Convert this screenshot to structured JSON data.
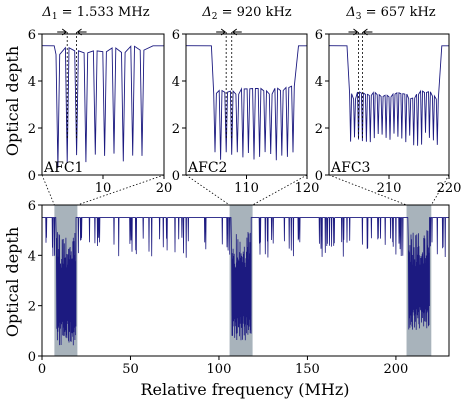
{
  "chart_data": [
    {
      "type": "line",
      "panel": "AFC1",
      "title": "Δ1 = 1.533 MHz",
      "title_parts": {
        "symbol": "Δ",
        "subscript": "1",
        "value": " = 1.533 MHz"
      },
      "label": "AFC1",
      "ylabel": "Optical depth",
      "xlim": [
        0,
        20
      ],
      "ylim": [
        0,
        6
      ],
      "x_ticks": [
        "10",
        "20"
      ],
      "y_ticks": [
        "0",
        "2",
        "4",
        "6"
      ],
      "comb": {
        "start": 2.6,
        "end": 17.6,
        "spacing": 1.533,
        "max": 5.5,
        "min_low": 0.3,
        "min_high": 1.05,
        "tooth_width": 0.6
      },
      "color": "#1c1a80"
    },
    {
      "type": "line",
      "panel": "AFC2",
      "title": "Δ2 = 920 kHz",
      "title_parts": {
        "symbol": "Δ",
        "subscript": "2",
        "value": " = 920 kHz"
      },
      "label": "AFC2",
      "xlim": [
        100,
        120
      ],
      "ylim": [
        0,
        6
      ],
      "x_ticks": [
        "110",
        "120"
      ],
      "y_ticks": [
        "0",
        "2",
        "4",
        "6"
      ],
      "comb": {
        "start": 104.8,
        "end": 118.0,
        "spacing": 0.92,
        "max": 3.8,
        "min_low": 0.6,
        "min_high": 1.0,
        "tooth_width": 0.45
      },
      "color": "#1c1a80"
    },
    {
      "type": "line",
      "panel": "AFC3",
      "title": "Δ3 = 657 kHz",
      "title_parts": {
        "symbol": "Δ",
        "subscript": "3",
        "value": " = 657 kHz"
      },
      "label": "AFC3",
      "xlim": [
        200,
        220
      ],
      "ylim": [
        0,
        6
      ],
      "x_ticks": [
        "210",
        "220"
      ],
      "y_ticks": [
        "0",
        "2",
        "4",
        "6"
      ],
      "comb": {
        "start": 203.6,
        "end": 218.2,
        "spacing": 0.657,
        "max": 3.6,
        "min_low": 1.2,
        "min_high": 1.8,
        "tooth_width": 0.33
      },
      "color": "#1c1a80"
    },
    {
      "type": "line",
      "panel": "full-spectrum",
      "xlabel": "Relative frequency (MHz)",
      "ylabel": "Optical depth",
      "xlim": [
        0,
        230
      ],
      "ylim": [
        0,
        6
      ],
      "x_ticks": [
        "0",
        "50",
        "100",
        "150",
        "200"
      ],
      "y_ticks": [
        "0",
        "2",
        "4",
        "6"
      ],
      "baseline": 5.5,
      "highlight_bands": [
        [
          7,
          20
        ],
        [
          106,
          119
        ],
        [
          206,
          220
        ]
      ],
      "band_color": "#a8b3bb",
      "color": "#1c1a80"
    }
  ]
}
